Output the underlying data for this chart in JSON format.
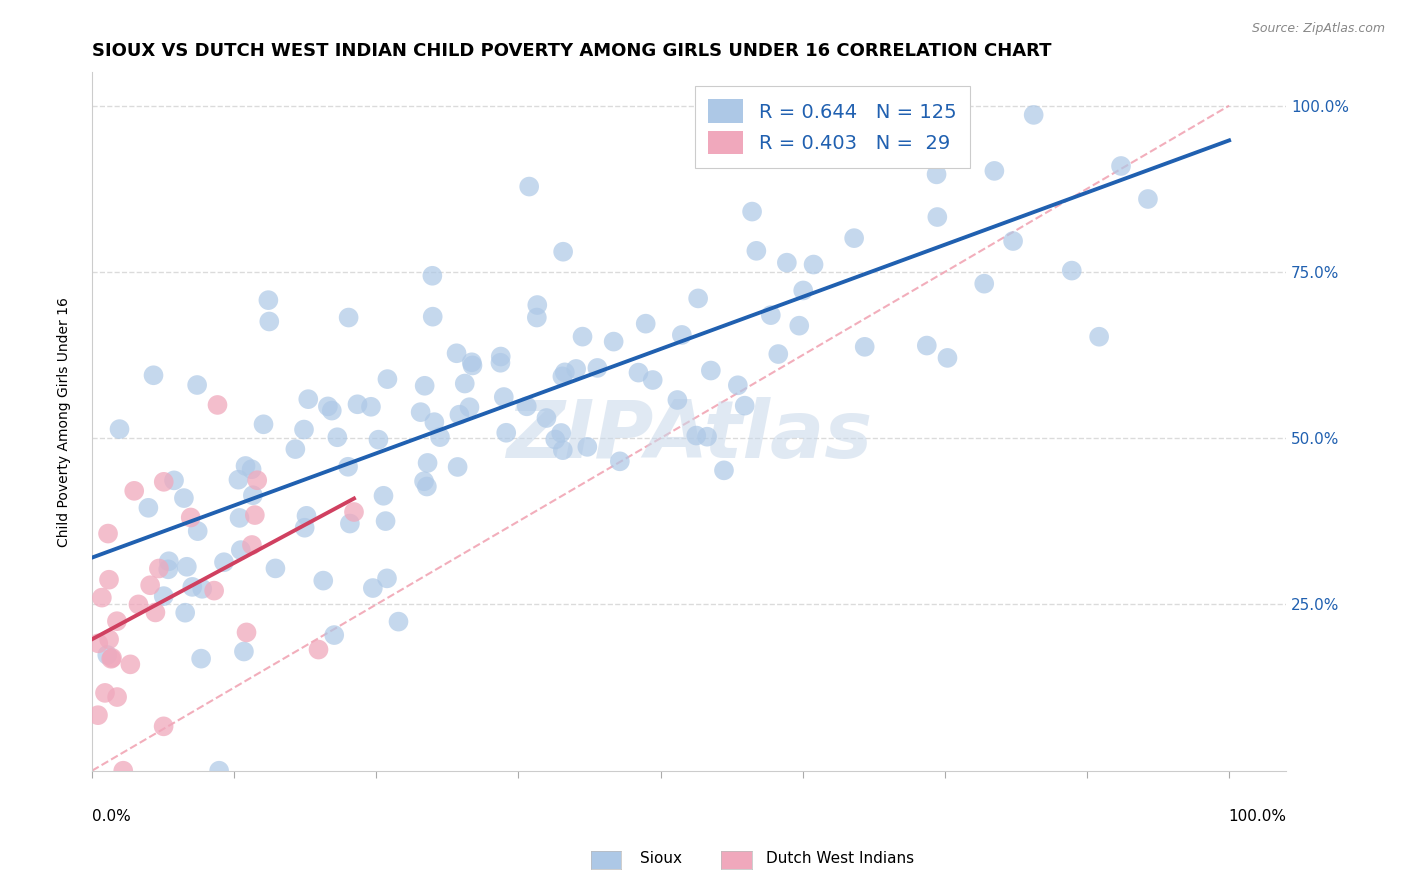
{
  "title": "SIOUX VS DUTCH WEST INDIAN CHILD POVERTY AMONG GIRLS UNDER 16 CORRELATION CHART",
  "source": "Source: ZipAtlas.com",
  "ylabel": "Child Poverty Among Girls Under 16",
  "watermark": "ZIPAtlas",
  "sioux_R": 0.644,
  "sioux_N": 125,
  "dutch_R": 0.403,
  "dutch_N": 29,
  "sioux_color": "#adc8e6",
  "sioux_line_color": "#2060b0",
  "dutch_color": "#f0a8bc",
  "dutch_line_color": "#d04060",
  "diag_line_color": "#f0a0b0",
  "background_color": "#ffffff",
  "grid_color": "#d8d8d8",
  "ylim": [
    0.0,
    1.05
  ],
  "xlim": [
    0.0,
    1.05
  ],
  "yticks": [
    0.0,
    0.25,
    0.5,
    0.75,
    1.0
  ],
  "ytick_labels": [
    "",
    "25.0%",
    "50.0%",
    "75.0%",
    "100.0%"
  ],
  "title_fontsize": 13,
  "label_fontsize": 10,
  "tick_fontsize": 11,
  "legend_fontsize": 14,
  "source_fontsize": 9
}
